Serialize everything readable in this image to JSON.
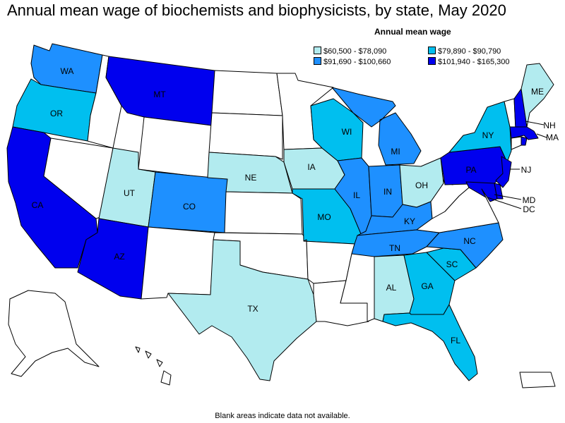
{
  "title": "Annual mean wage of biochemists and biophysicists, by state, May 2020",
  "legend": {
    "title": "Annual mean wage",
    "items": [
      {
        "label": "$60,500 - $78,090",
        "color": "#b2ebef"
      },
      {
        "label": "$79,890 - $90,790",
        "color": "#00bfef"
      },
      {
        "label": "$91,690 - $100,660",
        "color": "#1e90ff"
      },
      {
        "label": "$101,940 - $165,300",
        "color": "#0000ee"
      }
    ]
  },
  "footnote": "Blank areas indicate data not available.",
  "states": {
    "WA": {
      "label": "WA",
      "color": "#1e90ff"
    },
    "OR": {
      "label": "OR",
      "color": "#00bfef"
    },
    "CA": {
      "label": "CA",
      "color": "#0000ee"
    },
    "MT": {
      "label": "MT",
      "color": "#0000ee"
    },
    "UT": {
      "label": "UT",
      "color": "#b2ebef"
    },
    "CO": {
      "label": "CO",
      "color": "#1e90ff"
    },
    "AZ": {
      "label": "AZ",
      "color": "#0000ee"
    },
    "NE": {
      "label": "NE",
      "color": "#b2ebef"
    },
    "TX": {
      "label": "TX",
      "color": "#b2ebef"
    },
    "IA": {
      "label": "IA",
      "color": "#b2ebef"
    },
    "MO": {
      "label": "MO",
      "color": "#00bfef"
    },
    "WI": {
      "label": "WI",
      "color": "#00bfef"
    },
    "IL": {
      "label": "IL",
      "color": "#1e90ff"
    },
    "MI": {
      "label": "MI",
      "color": "#1e90ff"
    },
    "IN": {
      "label": "IN",
      "color": "#1e90ff"
    },
    "OH": {
      "label": "OH",
      "color": "#b2ebef"
    },
    "KY": {
      "label": "KY",
      "color": "#1e90ff"
    },
    "TN": {
      "label": "TN",
      "color": "#1e90ff"
    },
    "AL": {
      "label": "AL",
      "color": "#b2ebef"
    },
    "GA": {
      "label": "GA",
      "color": "#00bfef"
    },
    "FL": {
      "label": "FL",
      "color": "#00bfef"
    },
    "SC": {
      "label": "SC",
      "color": "#00bfef"
    },
    "NC": {
      "label": "NC",
      "color": "#1e90ff"
    },
    "NY": {
      "label": "NY",
      "color": "#00bfef"
    },
    "PA": {
      "label": "PA",
      "color": "#0000ee"
    },
    "NJ": {
      "label": "NJ",
      "color": "#0000ee"
    },
    "MD": {
      "label": "MD",
      "color": "#0000ee"
    },
    "DC": {
      "label": "DC",
      "color": "#0000ee"
    },
    "NH": {
      "label": "NH",
      "color": "#0000ee"
    },
    "MA": {
      "label": "MA",
      "color": "#0000ee"
    },
    "ME": {
      "label": "ME",
      "color": "#b2ebef"
    },
    "RI": {
      "color": "#0000ee"
    },
    "DE": {
      "color": "#0000ee"
    }
  },
  "blank_color": "#ffffff"
}
